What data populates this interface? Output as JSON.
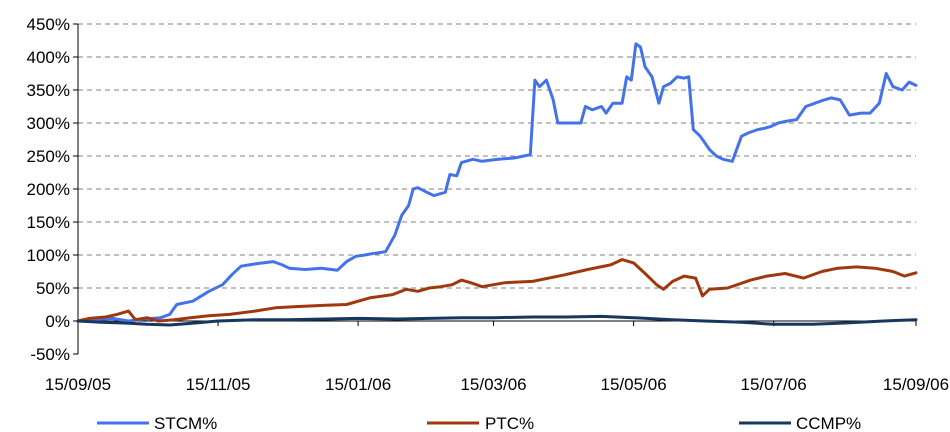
{
  "chart_data": {
    "type": "line",
    "title": "",
    "xlabel": "",
    "ylabel": "",
    "ylim": [
      -0.5,
      4.5
    ],
    "y_ticks": [
      -0.5,
      0,
      0.5,
      1,
      1.5,
      2,
      2.5,
      3,
      3.5,
      4,
      4.5
    ],
    "y_tick_labels": [
      "-50%",
      "0%",
      "50%",
      "100%",
      "150%",
      "200%",
      "250%",
      "300%",
      "350%",
      "400%",
      "450%"
    ],
    "xlim": [
      "2005-09-15",
      "2006-09-15"
    ],
    "x_ticks": [
      "2005-09-15",
      "2005-11-15",
      "2006-01-15",
      "2006-03-15",
      "2006-05-15",
      "2006-07-15",
      "2006-09-15"
    ],
    "x_tick_labels": [
      "15/09/05",
      "15/11/05",
      "15/01/06",
      "15/03/06",
      "15/05/06",
      "15/07/06",
      "15/09/06"
    ],
    "grid": "horizontal dashed",
    "legend_position": "bottom",
    "series": [
      {
        "name": "STCM%",
        "color": "#4472E8",
        "points": [
          [
            "2005-09-15",
            0.0
          ],
          [
            "2005-09-22",
            0.02
          ],
          [
            "2005-09-30",
            0.04
          ],
          [
            "2005-10-07",
            0.0
          ],
          [
            "2005-10-14",
            0.03
          ],
          [
            "2005-10-21",
            0.05
          ],
          [
            "2005-10-25",
            0.1
          ],
          [
            "2005-10-28",
            0.25
          ],
          [
            "2005-11-04",
            0.3
          ],
          [
            "2005-11-11",
            0.45
          ],
          [
            "2005-11-17",
            0.55
          ],
          [
            "2005-11-21",
            0.7
          ],
          [
            "2005-11-25",
            0.83
          ],
          [
            "2005-12-02",
            0.87
          ],
          [
            "2005-12-09",
            0.9
          ],
          [
            "2005-12-13",
            0.85
          ],
          [
            "2005-12-16",
            0.8
          ],
          [
            "2005-12-23",
            0.78
          ],
          [
            "2005-12-30",
            0.8
          ],
          [
            "2006-01-06",
            0.77
          ],
          [
            "2006-01-10",
            0.9
          ],
          [
            "2006-01-14",
            0.98
          ],
          [
            "2006-01-18",
            1.0
          ],
          [
            "2006-01-21",
            1.02
          ],
          [
            "2006-01-27",
            1.05
          ],
          [
            "2006-01-31",
            1.3
          ],
          [
            "2006-02-03",
            1.6
          ],
          [
            "2006-02-06",
            1.75
          ],
          [
            "2006-02-08",
            2.0
          ],
          [
            "2006-02-10",
            2.02
          ],
          [
            "2006-02-14",
            1.95
          ],
          [
            "2006-02-17",
            1.9
          ],
          [
            "2006-02-22",
            1.95
          ],
          [
            "2006-02-24",
            2.22
          ],
          [
            "2006-02-27",
            2.2
          ],
          [
            "2006-03-01",
            2.4
          ],
          [
            "2006-03-06",
            2.45
          ],
          [
            "2006-03-10",
            2.42
          ],
          [
            "2006-03-17",
            2.45
          ],
          [
            "2006-03-24",
            2.47
          ],
          [
            "2006-03-31",
            2.52
          ],
          [
            "2006-04-02",
            3.65
          ],
          [
            "2006-04-04",
            3.55
          ],
          [
            "2006-04-07",
            3.65
          ],
          [
            "2006-04-10",
            3.35
          ],
          [
            "2006-04-12",
            3.0
          ],
          [
            "2006-04-18",
            3.0
          ],
          [
            "2006-04-22",
            3.0
          ],
          [
            "2006-04-24",
            3.25
          ],
          [
            "2006-04-27",
            3.2
          ],
          [
            "2006-05-01",
            3.25
          ],
          [
            "2006-05-03",
            3.15
          ],
          [
            "2006-05-06",
            3.3
          ],
          [
            "2006-05-10",
            3.3
          ],
          [
            "2006-05-12",
            3.7
          ],
          [
            "2006-05-14",
            3.65
          ],
          [
            "2006-05-16",
            4.2
          ],
          [
            "2006-05-18",
            4.15
          ],
          [
            "2006-05-20",
            3.85
          ],
          [
            "2006-05-23",
            3.7
          ],
          [
            "2006-05-26",
            3.3
          ],
          [
            "2006-05-28",
            3.55
          ],
          [
            "2006-05-31",
            3.6
          ],
          [
            "2006-06-03",
            3.7
          ],
          [
            "2006-06-06",
            3.68
          ],
          [
            "2006-06-08",
            3.7
          ],
          [
            "2006-06-10",
            2.9
          ],
          [
            "2006-06-13",
            2.8
          ],
          [
            "2006-06-17",
            2.6
          ],
          [
            "2006-06-20",
            2.5
          ],
          [
            "2006-06-23",
            2.45
          ],
          [
            "2006-06-27",
            2.42
          ],
          [
            "2006-07-01",
            2.8
          ],
          [
            "2006-07-04",
            2.85
          ],
          [
            "2006-07-08",
            2.9
          ],
          [
            "2006-07-11",
            2.92
          ],
          [
            "2006-07-14",
            2.95
          ],
          [
            "2006-07-17",
            3.0
          ],
          [
            "2006-07-21",
            3.03
          ],
          [
            "2006-07-25",
            3.05
          ],
          [
            "2006-07-29",
            3.25
          ],
          [
            "2006-08-02",
            3.3
          ],
          [
            "2006-08-06",
            3.35
          ],
          [
            "2006-08-09",
            3.38
          ],
          [
            "2006-08-13",
            3.35
          ],
          [
            "2006-08-17",
            3.12
          ],
          [
            "2006-08-22",
            3.15
          ],
          [
            "2006-08-26",
            3.15
          ],
          [
            "2006-08-30",
            3.3
          ],
          [
            "2006-09-02",
            3.75
          ],
          [
            "2006-09-05",
            3.55
          ],
          [
            "2006-09-09",
            3.5
          ],
          [
            "2006-09-12",
            3.62
          ],
          [
            "2006-09-15",
            3.57
          ]
        ]
      },
      {
        "name": "PTC%",
        "color": "#A0380F",
        "points": [
          [
            "2005-09-15",
            0.0
          ],
          [
            "2005-09-20",
            0.04
          ],
          [
            "2005-09-27",
            0.06
          ],
          [
            "2005-10-02",
            0.1
          ],
          [
            "2005-10-07",
            0.15
          ],
          [
            "2005-10-10",
            0.02
          ],
          [
            "2005-10-15",
            0.05
          ],
          [
            "2005-10-20",
            0.0
          ],
          [
            "2005-10-27",
            0.02
          ],
          [
            "2005-11-03",
            0.05
          ],
          [
            "2005-11-11",
            0.08
          ],
          [
            "2005-11-20",
            0.1
          ],
          [
            "2005-12-01",
            0.15
          ],
          [
            "2005-12-10",
            0.2
          ],
          [
            "2005-12-20",
            0.22
          ],
          [
            "2006-01-01",
            0.24
          ],
          [
            "2006-01-10",
            0.25
          ],
          [
            "2006-01-20",
            0.35
          ],
          [
            "2006-01-30",
            0.4
          ],
          [
            "2006-02-05",
            0.48
          ],
          [
            "2006-02-10",
            0.45
          ],
          [
            "2006-02-15",
            0.5
          ],
          [
            "2006-02-20",
            0.52
          ],
          [
            "2006-02-25",
            0.55
          ],
          [
            "2006-03-01",
            0.62
          ],
          [
            "2006-03-05",
            0.58
          ],
          [
            "2006-03-10",
            0.52
          ],
          [
            "2006-03-15",
            0.55
          ],
          [
            "2006-03-20",
            0.58
          ],
          [
            "2006-04-01",
            0.6
          ],
          [
            "2006-04-15",
            0.7
          ],
          [
            "2006-04-25",
            0.78
          ],
          [
            "2006-05-05",
            0.85
          ],
          [
            "2006-05-10",
            0.93
          ],
          [
            "2006-05-15",
            0.88
          ],
          [
            "2006-05-20",
            0.72
          ],
          [
            "2006-05-25",
            0.55
          ],
          [
            "2006-05-28",
            0.48
          ],
          [
            "2006-06-01",
            0.6
          ],
          [
            "2006-06-06",
            0.68
          ],
          [
            "2006-06-11",
            0.65
          ],
          [
            "2006-06-14",
            0.38
          ],
          [
            "2006-06-17",
            0.48
          ],
          [
            "2006-06-25",
            0.5
          ],
          [
            "2006-07-05",
            0.62
          ],
          [
            "2006-07-12",
            0.68
          ],
          [
            "2006-07-20",
            0.72
          ],
          [
            "2006-07-28",
            0.65
          ],
          [
            "2006-08-05",
            0.75
          ],
          [
            "2006-08-12",
            0.8
          ],
          [
            "2006-08-20",
            0.82
          ],
          [
            "2006-08-28",
            0.8
          ],
          [
            "2006-09-05",
            0.75
          ],
          [
            "2006-09-10",
            0.68
          ],
          [
            "2006-09-15",
            0.73
          ]
        ]
      },
      {
        "name": "CCMP%",
        "color": "#17375E",
        "points": [
          [
            "2005-09-15",
            0.0
          ],
          [
            "2005-09-25",
            -0.02
          ],
          [
            "2005-10-05",
            -0.03
          ],
          [
            "2005-10-15",
            -0.05
          ],
          [
            "2005-10-25",
            -0.06
          ],
          [
            "2005-11-05",
            -0.03
          ],
          [
            "2005-11-15",
            0.0
          ],
          [
            "2005-12-01",
            0.02
          ],
          [
            "2005-12-15",
            0.02
          ],
          [
            "2006-01-01",
            0.03
          ],
          [
            "2006-01-15",
            0.04
          ],
          [
            "2006-02-01",
            0.03
          ],
          [
            "2006-02-15",
            0.04
          ],
          [
            "2006-03-01",
            0.05
          ],
          [
            "2006-03-15",
            0.05
          ],
          [
            "2006-04-01",
            0.06
          ],
          [
            "2006-04-15",
            0.06
          ],
          [
            "2006-05-01",
            0.07
          ],
          [
            "2006-05-15",
            0.05
          ],
          [
            "2006-06-01",
            0.02
          ],
          [
            "2006-06-15",
            0.0
          ],
          [
            "2006-07-01",
            -0.02
          ],
          [
            "2006-07-15",
            -0.05
          ],
          [
            "2006-08-01",
            -0.05
          ],
          [
            "2006-08-15",
            -0.03
          ],
          [
            "2006-09-01",
            0.0
          ],
          [
            "2006-09-15",
            0.02
          ]
        ]
      }
    ]
  }
}
